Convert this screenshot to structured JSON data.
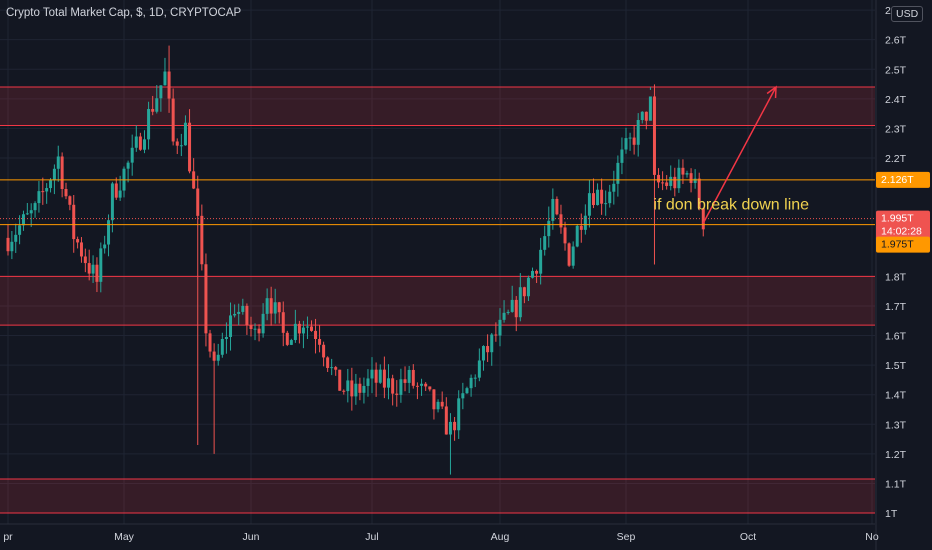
{
  "header": {
    "title": "Crypto Total Market Cap, $, 1D, CRYPTOCAP",
    "currency": "USD"
  },
  "chart_data": {
    "type": "candlestick",
    "title": "Crypto Total Market Cap, $, 1D, CRYPTOCAP",
    "y_unit": "T",
    "ylim": [
      0.99,
      2.68
    ],
    "y_ticks": [
      "1T",
      "1.1T",
      "1.2T",
      "1.3T",
      "1.4T",
      "1.5T",
      "1.6T",
      "1.7T",
      "1.8T",
      "2.2T",
      "2.3T",
      "2.4T",
      "2.5T",
      "2.6T",
      "2."
    ],
    "y_tick_values": [
      1.0,
      1.1,
      1.2,
      1.3,
      1.4,
      1.5,
      1.6,
      1.7,
      1.8,
      2.2,
      2.3,
      2.4,
      2.5,
      2.6,
      2.7
    ],
    "x_ticks": [
      {
        "label": "pr",
        "date": "2021-04-01"
      },
      {
        "label": "May",
        "date": "2021-05-01"
      },
      {
        "label": "Jun",
        "date": "2021-06-01"
      },
      {
        "label": "Jul",
        "date": "2021-07-01"
      },
      {
        "label": "Aug",
        "date": "2021-08-01"
      },
      {
        "label": "Sep",
        "date": "2021-09-01"
      },
      {
        "label": "Oct",
        "date": "2021-10-01"
      },
      {
        "label": "No",
        "date": "2021-11-01"
      }
    ],
    "close_path": [
      [
        "2021-04-01",
        1.93
      ],
      [
        "2021-04-08",
        2.02
      ],
      [
        "2021-04-14",
        2.2
      ],
      [
        "2021-04-18",
        1.94
      ],
      [
        "2021-04-24",
        1.78
      ],
      [
        "2021-04-28",
        2.08
      ],
      [
        "2021-05-03",
        2.2
      ],
      [
        "2021-05-08",
        2.38
      ],
      [
        "2021-05-11",
        2.48
      ],
      [
        "2021-05-13",
        2.25
      ],
      [
        "2021-05-16",
        2.3
      ],
      [
        "2021-05-19",
        1.97
      ],
      [
        "2021-05-21",
        1.63
      ],
      [
        "2021-05-23",
        1.48
      ],
      [
        "2021-05-28",
        1.7
      ],
      [
        "2021-06-02",
        1.6
      ],
      [
        "2021-06-05",
        1.75
      ],
      [
        "2021-06-09",
        1.6
      ],
      [
        "2021-06-14",
        1.65
      ],
      [
        "2021-06-18",
        1.6
      ],
      [
        "2021-06-22",
        1.44
      ],
      [
        "2021-06-26",
        1.4
      ],
      [
        "2021-07-01",
        1.45
      ],
      [
        "2021-07-06",
        1.43
      ],
      [
        "2021-07-10",
        1.45
      ],
      [
        "2021-07-15",
        1.38
      ],
      [
        "2021-07-20",
        1.28
      ],
      [
        "2021-07-26",
        1.48
      ],
      [
        "2021-07-31",
        1.6
      ],
      [
        "2021-08-05",
        1.7
      ],
      [
        "2021-08-10",
        1.85
      ],
      [
        "2021-08-14",
        2.02
      ],
      [
        "2021-08-18",
        1.87
      ],
      [
        "2021-08-23",
        2.09
      ],
      [
        "2021-08-27",
        2.07
      ],
      [
        "2021-08-31",
        2.2
      ],
      [
        "2021-09-04",
        2.3
      ],
      [
        "2021-09-07",
        2.38
      ],
      [
        "2021-09-08",
        2.11
      ],
      [
        "2021-09-13",
        2.12
      ],
      [
        "2021-09-17",
        2.15
      ],
      [
        "2021-09-20",
        1.99
      ]
    ],
    "horizontal_zones": [
      {
        "from": 2.31,
        "to": 2.44
      },
      {
        "from": 1.635,
        "to": 1.8
      },
      {
        "from": 1.0,
        "to": 1.115
      }
    ],
    "horizontal_lines": [
      {
        "value": 2.126,
        "label": "2.126T",
        "color": "#ff9800"
      },
      {
        "value": 1.975,
        "label": "1.975T",
        "color": "#ff9800"
      }
    ],
    "last_price": {
      "label": "1.995T",
      "countdown": "14:02:28",
      "value": 1.995
    },
    "annotation": {
      "text": "if don break down line",
      "color": "#f0d250"
    },
    "projection_arrow": {
      "from": [
        "2021-09-20",
        1.98
      ],
      "to": [
        "2021-10-08",
        2.44
      ],
      "color": "#f23645"
    },
    "colors": {
      "up": "#26a69a",
      "down": "#ef5350",
      "zone": "#f23645",
      "level": "#ff9800"
    },
    "grid": true
  }
}
